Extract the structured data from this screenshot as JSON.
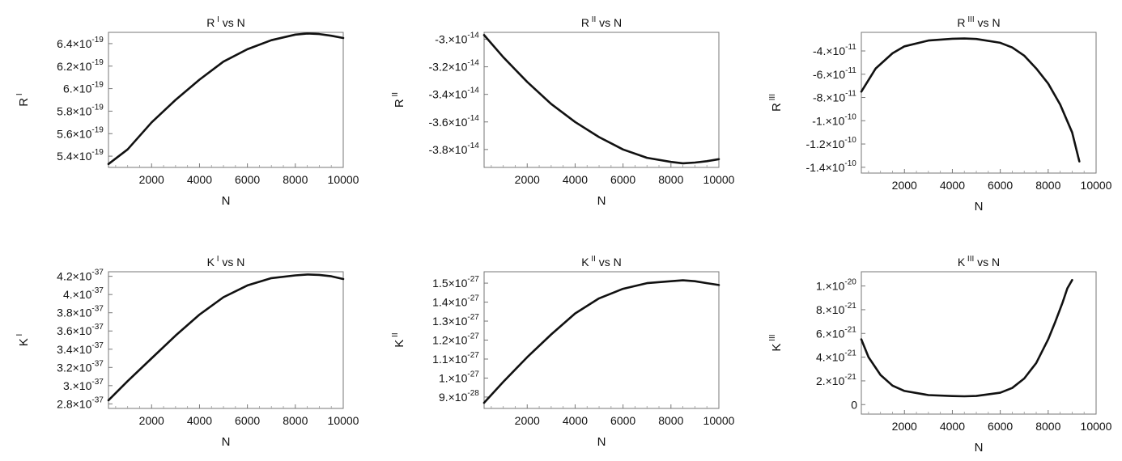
{
  "chart_data": [
    {
      "id": "R1",
      "type": "line",
      "title_main": "R",
      "title_sup": "I",
      "title_rest": " vs N",
      "xlabel": "N",
      "ylabel_main": "R",
      "ylabel_sup": "I",
      "xlim": [
        200,
        10000
      ],
      "ylim": [
        5.3e-19,
        6.5e-19
      ],
      "xticks": [
        "2000",
        "4000",
        "6000",
        "8000",
        "10000"
      ],
      "xtick_values": [
        2000,
        4000,
        6000,
        8000,
        10000
      ],
      "yticks": [
        {
          "mant": "5.4",
          "exp": "-19",
          "value": 5.4e-19
        },
        {
          "mant": "5.6",
          "exp": "-19",
          "value": 5.6e-19
        },
        {
          "mant": "5.8",
          "exp": "-19",
          "value": 5.8e-19
        },
        {
          "mant": "6.",
          "exp": "-19",
          "value": 6e-19
        },
        {
          "mant": "6.2",
          "exp": "-19",
          "value": 6.2e-19
        },
        {
          "mant": "6.4",
          "exp": "-19",
          "value": 6.4e-19
        }
      ],
      "x": [
        200,
        1000,
        2000,
        3000,
        4000,
        5000,
        6000,
        7000,
        8000,
        8500,
        9000,
        9500,
        10000
      ],
      "y": [
        5.33e-19,
        5.46e-19,
        5.7e-19,
        5.9e-19,
        6.08e-19,
        6.24e-19,
        6.35e-19,
        6.43e-19,
        6.48e-19,
        6.49e-19,
        6.485e-19,
        6.47e-19,
        6.45e-19
      ]
    },
    {
      "id": "R2",
      "type": "line",
      "title_main": "R",
      "title_sup": "II",
      "title_rest": " vs N",
      "xlabel": "N",
      "ylabel_main": "R",
      "ylabel_sup": "II",
      "xlim": [
        200,
        10000
      ],
      "ylim": [
        -3.93e-14,
        -2.95e-14
      ],
      "xticks": [
        "2000",
        "4000",
        "6000",
        "8000",
        "10000"
      ],
      "xtick_values": [
        2000,
        4000,
        6000,
        8000,
        10000
      ],
      "yticks": [
        {
          "mant": "-3.8",
          "exp": "-14",
          "value": -3.8e-14
        },
        {
          "mant": "-3.6",
          "exp": "-14",
          "value": -3.6e-14
        },
        {
          "mant": "-3.4",
          "exp": "-14",
          "value": -3.4e-14
        },
        {
          "mant": "-3.2",
          "exp": "-14",
          "value": -3.2e-14
        },
        {
          "mant": "-3.",
          "exp": "-14",
          "value": -3e-14
        }
      ],
      "x": [
        200,
        1000,
        2000,
        3000,
        4000,
        5000,
        6000,
        7000,
        8000,
        8500,
        9000,
        9500,
        10000
      ],
      "y": [
        -2.97e-14,
        -3.13e-14,
        -3.31e-14,
        -3.47e-14,
        -3.6e-14,
        -3.71e-14,
        -3.8e-14,
        -3.86e-14,
        -3.89e-14,
        -3.9e-14,
        -3.895e-14,
        -3.885e-14,
        -3.87e-14
      ]
    },
    {
      "id": "R3",
      "type": "line",
      "title_main": "R",
      "title_sup": "III",
      "title_rest": " vs N",
      "xlabel": "N",
      "ylabel_main": "R",
      "ylabel_sup": "III",
      "xlim": [
        200,
        10000
      ],
      "ylim": [
        -1.45e-10,
        -2.4e-11
      ],
      "xticks": [
        "2000",
        "4000",
        "6000",
        "8000",
        "10000"
      ],
      "xtick_values": [
        2000,
        4000,
        6000,
        8000,
        10000
      ],
      "yticks": [
        {
          "mant": "-4.",
          "exp": "-11",
          "value": -4e-11
        },
        {
          "mant": "-6.",
          "exp": "-11",
          "value": -6e-11
        },
        {
          "mant": "-8.",
          "exp": "-11",
          "value": -8e-11
        },
        {
          "mant": "-1.",
          "exp": "-10",
          "value": -1e-10
        },
        {
          "mant": "-1.2",
          "exp": "-10",
          "value": -1.2e-10
        },
        {
          "mant": "-1.4",
          "exp": "-10",
          "value": -1.4e-10
        }
      ],
      "x": [
        200,
        800,
        1500,
        2000,
        3000,
        4000,
        4500,
        5000,
        6000,
        6500,
        7000,
        7500,
        8000,
        8500,
        9000,
        9300
      ],
      "y": [
        -7.5e-11,
        -5.5e-11,
        -4.2e-11,
        -3.6e-11,
        -3.1e-11,
        -2.95e-11,
        -2.93e-11,
        -2.97e-11,
        -3.3e-11,
        -3.7e-11,
        -4.4e-11,
        -5.5e-11,
        -6.8e-11,
        -8.6e-11,
        -1.1e-10,
        -1.35e-10
      ]
    },
    {
      "id": "K1",
      "type": "line",
      "title_main": "K",
      "title_sup": "I",
      "title_rest": " vs N",
      "xlabel": "N",
      "ylabel_main": "K",
      "ylabel_sup": "I",
      "xlim": [
        200,
        10000
      ],
      "ylim": [
        2.75e-37,
        4.25e-37
      ],
      "xticks": [
        "2000",
        "4000",
        "6000",
        "8000",
        "10000"
      ],
      "xtick_values": [
        2000,
        4000,
        6000,
        8000,
        10000
      ],
      "yticks": [
        {
          "mant": "2.8",
          "exp": "-37",
          "value": 2.8e-37
        },
        {
          "mant": "3.",
          "exp": "-37",
          "value": 3e-37
        },
        {
          "mant": "3.2",
          "exp": "-37",
          "value": 3.2e-37
        },
        {
          "mant": "3.4",
          "exp": "-37",
          "value": 3.4e-37
        },
        {
          "mant": "3.6",
          "exp": "-37",
          "value": 3.6e-37
        },
        {
          "mant": "3.8",
          "exp": "-37",
          "value": 3.8e-37
        },
        {
          "mant": "4.",
          "exp": "-37",
          "value": 4e-37
        },
        {
          "mant": "4.2",
          "exp": "-37",
          "value": 4.2e-37
        }
      ],
      "x": [
        200,
        1000,
        2000,
        3000,
        4000,
        5000,
        6000,
        7000,
        8000,
        8500,
        9000,
        9500,
        10000
      ],
      "y": [
        2.84e-37,
        3.05e-37,
        3.3e-37,
        3.55e-37,
        3.78e-37,
        3.97e-37,
        4.1e-37,
        4.18e-37,
        4.21e-37,
        4.22e-37,
        4.215e-37,
        4.2e-37,
        4.17e-37
      ]
    },
    {
      "id": "K2",
      "type": "line",
      "title_main": "K",
      "title_sup": "II",
      "title_rest": " vs N",
      "xlabel": "N",
      "ylabel_main": "K",
      "ylabel_sup": "II",
      "xlim": [
        200,
        10000
      ],
      "ylim": [
        8.4e-28,
        1.56e-27
      ],
      "xticks": [
        "2000",
        "4000",
        "6000",
        "8000",
        "10000"
      ],
      "xtick_values": [
        2000,
        4000,
        6000,
        8000,
        10000
      ],
      "yticks": [
        {
          "mant": "9.",
          "exp": "-28",
          "value": 9e-28
        },
        {
          "mant": "1.",
          "exp": "-27",
          "value": 1e-27
        },
        {
          "mant": "1.1",
          "exp": "-27",
          "value": 1.1e-27
        },
        {
          "mant": "1.2",
          "exp": "-27",
          "value": 1.2e-27
        },
        {
          "mant": "1.3",
          "exp": "-27",
          "value": 1.3e-27
        },
        {
          "mant": "1.4",
          "exp": "-27",
          "value": 1.4e-27
        },
        {
          "mant": "1.5",
          "exp": "-27",
          "value": 1.5e-27
        }
      ],
      "x": [
        200,
        1000,
        2000,
        3000,
        4000,
        5000,
        6000,
        7000,
        8000,
        8500,
        9000,
        9500,
        10000
      ],
      "y": [
        8.7e-28,
        9.8e-28,
        1.11e-27,
        1.23e-27,
        1.34e-27,
        1.42e-27,
        1.47e-27,
        1.5e-27,
        1.51e-27,
        1.515e-27,
        1.51e-27,
        1.5e-27,
        1.49e-27
      ]
    },
    {
      "id": "K3",
      "type": "line",
      "title_main": "K",
      "title_sup": "III",
      "title_rest": " vs N",
      "xlabel": "N",
      "ylabel_main": "K",
      "ylabel_sup": "III",
      "xlim": [
        200,
        10000
      ],
      "ylim": [
        -8e-22,
        1.12e-20
      ],
      "xticks": [
        "2000",
        "4000",
        "6000",
        "8000",
        "10000"
      ],
      "xtick_values": [
        2000,
        4000,
        6000,
        8000,
        10000
      ],
      "yticks": [
        {
          "mant": "0",
          "exp": "",
          "value": 0
        },
        {
          "mant": "2.",
          "exp": "-21",
          "value": 2e-21
        },
        {
          "mant": "4.",
          "exp": "-21",
          "value": 4e-21
        },
        {
          "mant": "6.",
          "exp": "-21",
          "value": 6e-21
        },
        {
          "mant": "8.",
          "exp": "-21",
          "value": 8e-21
        },
        {
          "mant": "1.",
          "exp": "-20",
          "value": 1e-20
        }
      ],
      "x": [
        200,
        500,
        1000,
        1500,
        2000,
        3000,
        4000,
        4500,
        5000,
        6000,
        6500,
        7000,
        7500,
        8000,
        8300,
        8600,
        8800,
        9000
      ],
      "y": [
        5.5e-21,
        4e-21,
        2.5e-21,
        1.6e-21,
        1.15e-21,
        8e-22,
        7.2e-22,
        7e-22,
        7.3e-22,
        1e-21,
        1.4e-21,
        2.2e-21,
        3.5e-21,
        5.5e-21,
        7e-21,
        8.6e-21,
        9.8e-21,
        1.05e-20
      ]
    }
  ]
}
